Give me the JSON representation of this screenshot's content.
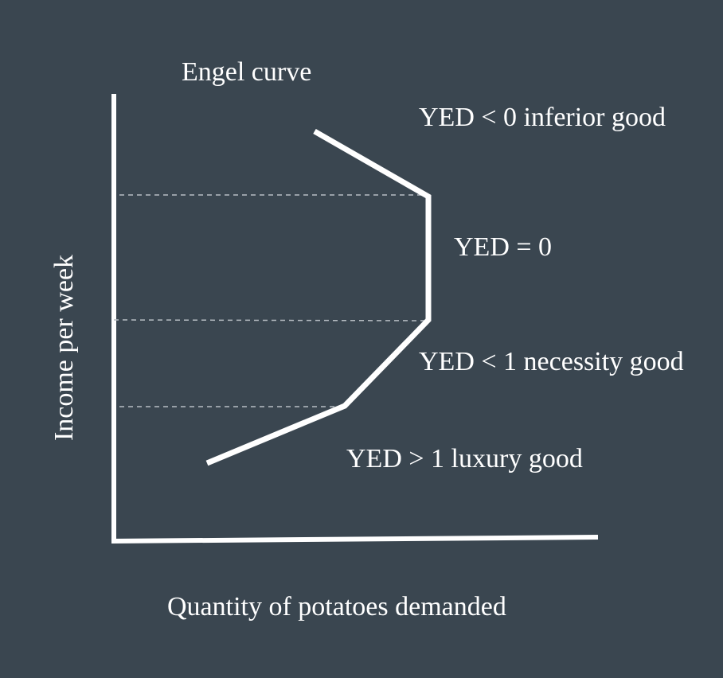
{
  "title": "Engel curve",
  "axes": {
    "x_label": "Quantity of potatoes demanded",
    "y_label": "Income per week"
  },
  "regions": [
    {
      "label": "YED < 0 inferior good"
    },
    {
      "label": "YED = 0"
    },
    {
      "label": "YED < 1 necessity good"
    },
    {
      "label": "YED > 1 luxury good"
    }
  ]
}
